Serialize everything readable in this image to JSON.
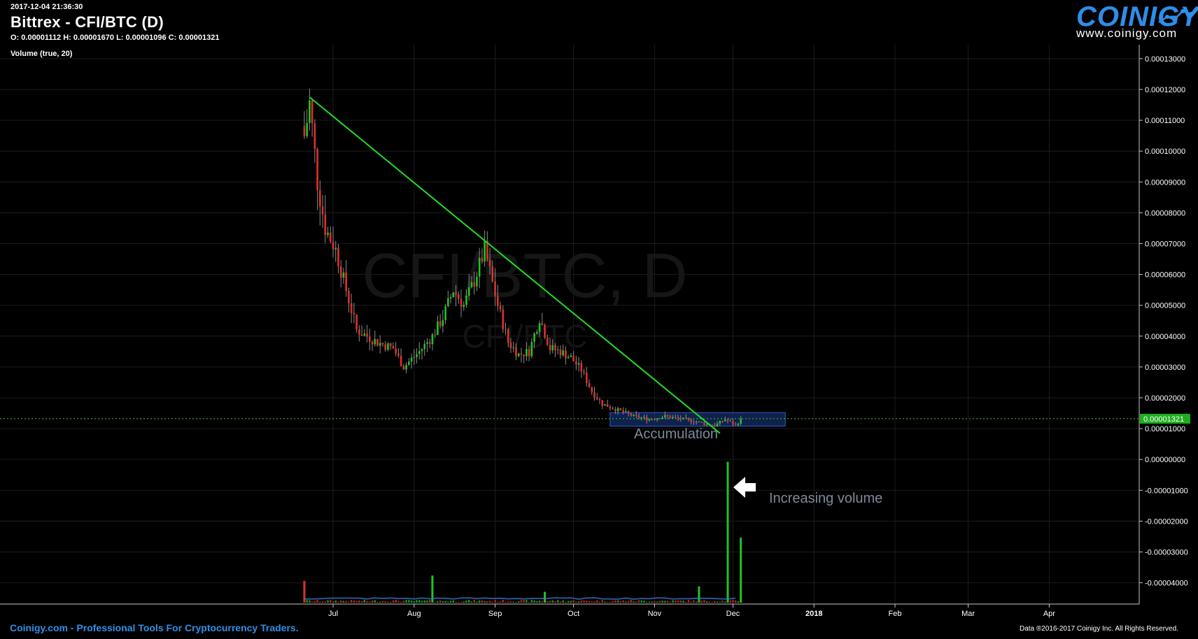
{
  "header": {
    "timestamp": "2017-12-04 21:36:30",
    "title": "Bittrex - CFI/BTC (D)",
    "ohlc": "O: 0.00001112 H: 0.00001670 L: 0.00001096 C: 0.00001321",
    "volume_label": "Volume (true, 20)"
  },
  "logo": {
    "name": "COINIGY",
    "url": "www.coinigy.com"
  },
  "watermark": {
    "main": "CFI/BTC, D",
    "sub": "CFI/BTC"
  },
  "annotations": {
    "accumulation": "Accumulation",
    "increasing_volume": "Increasing volume"
  },
  "footer": {
    "left": "Coinigy.com - Professional Tools For Cryptocurrency Traders.",
    "right": "Data ®2016-2017 Coinigy Inc. All Rights Reserved."
  },
  "colors": {
    "up": "#22c322",
    "down": "#e0302a",
    "trendline": "#22dd22",
    "grid": "#1c1c1c",
    "price_tag_bg": "#1fae1f",
    "zone_fill": "#1b3c8a"
  },
  "chart_data": {
    "type": "candlestick",
    "symbol": "CFI/BTC",
    "exchange": "Bittrex",
    "timeframe": "D",
    "x_ticks": [
      "Jul",
      "Aug",
      "Sep",
      "Oct",
      "Nov",
      "Dec",
      "2018",
      "Feb",
      "Mar",
      "Apr"
    ],
    "x_tick_dates": [
      "2017-07-01",
      "2017-08-01",
      "2017-09-01",
      "2017-10-01",
      "2017-11-01",
      "2017-12-01",
      "2018-01-01",
      "2018-02-01",
      "2018-03-01",
      "2018-04-01"
    ],
    "y_ticks": [
      "0.00013000",
      "0.00012000",
      "0.00011000",
      "0.00010000",
      "0.00009000",
      "0.00008000",
      "0.00007000",
      "0.00006000",
      "0.00005000",
      "0.00004000",
      "0.00003000",
      "0.00002000",
      "0.00001000",
      "0.00000000",
      "-0.00001000",
      "-0.00002000",
      "-0.00003000",
      "-0.00004000"
    ],
    "y_tick_values": [
      0.00013,
      0.00012,
      0.00011,
      0.0001,
      9e-05,
      8e-05,
      7e-05,
      6e-05,
      5e-05,
      4e-05,
      3e-05,
      2e-05,
      1e-05,
      0,
      -1e-05,
      -2e-05,
      -3e-05,
      -4e-05
    ],
    "ylim": [
      -4.69e-05,
      0.0001345
    ],
    "current_price": "0.00001321",
    "grid": true,
    "close_path": [
      [
        "2017-06-20",
        0.000105
      ],
      [
        "2017-06-22",
        0.000115
      ],
      [
        "2017-06-25",
        9e-05
      ],
      [
        "2017-06-28",
        7.5e-05
      ],
      [
        "2017-07-02",
        6.8e-05
      ],
      [
        "2017-07-06",
        5.5e-05
      ],
      [
        "2017-07-10",
        4.2e-05
      ],
      [
        "2017-07-14",
        4e-05
      ],
      [
        "2017-07-18",
        3.8e-05
      ],
      [
        "2017-07-24",
        3.6e-05
      ],
      [
        "2017-07-28",
        3e-05
      ],
      [
        "2017-08-03",
        3.5e-05
      ],
      [
        "2017-08-08",
        4e-05
      ],
      [
        "2017-08-12",
        4.6e-05
      ],
      [
        "2017-08-16",
        5.5e-05
      ],
      [
        "2017-08-20",
        5e-05
      ],
      [
        "2017-08-24",
        5.8e-05
      ],
      [
        "2017-08-28",
        6.8e-05
      ],
      [
        "2017-09-02",
        5e-05
      ],
      [
        "2017-09-06",
        3.8e-05
      ],
      [
        "2017-09-10",
        3.4e-05
      ],
      [
        "2017-09-14",
        3.5e-05
      ],
      [
        "2017-09-18",
        4.6e-05
      ],
      [
        "2017-09-22",
        3.6e-05
      ],
      [
        "2017-09-26",
        3.5e-05
      ],
      [
        "2017-09-30",
        3.3e-05
      ],
      [
        "2017-10-04",
        2.9e-05
      ],
      [
        "2017-10-08",
        2.2e-05
      ],
      [
        "2017-10-12",
        1.8e-05
      ],
      [
        "2017-10-18",
        1.6e-05
      ],
      [
        "2017-10-24",
        1.4e-05
      ],
      [
        "2017-10-30",
        1.3e-05
      ],
      [
        "2017-11-05",
        1.4e-05
      ],
      [
        "2017-11-12",
        1.3e-05
      ],
      [
        "2017-11-18",
        1.2e-05
      ],
      [
        "2017-11-24",
        1.1e-05
      ],
      [
        "2017-11-28",
        1.3e-05
      ],
      [
        "2017-11-30",
        1.2e-05
      ],
      [
        "2017-12-02",
        1.1e-05
      ],
      [
        "2017-12-04",
        1.321e-05
      ]
    ],
    "volume_spikes": [
      [
        "2017-06-20",
        2
      ],
      [
        "2017-08-08",
        2.5
      ],
      [
        "2017-09-20",
        1
      ],
      [
        "2017-11-18",
        1.5
      ],
      [
        "2017-11-29",
        13
      ],
      [
        "2017-12-04",
        6
      ]
    ],
    "trendline": {
      "from": [
        "2017-06-22",
        0.0001175
      ],
      "to": [
        "2017-11-26",
        8.5e-06
      ]
    },
    "accumulation_zone": {
      "from": "2017-10-15",
      "to": "2017-12-21",
      "low": 1.08e-05,
      "high": 1.52e-05
    }
  }
}
